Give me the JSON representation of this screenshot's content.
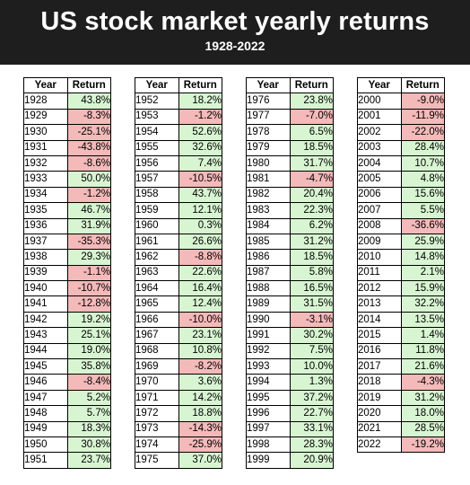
{
  "header": {
    "title": "US stock market yearly returns",
    "subtitle": "1928-2022"
  },
  "colors": {
    "header_bg": "#1e1e1e",
    "positive": "#d8f5d2",
    "negative": "#f4b9b9"
  },
  "chart_data": {
    "type": "table",
    "title": "US stock market yearly returns",
    "subtitle": "1928-2022",
    "columns": [
      "Year",
      "Return"
    ],
    "tables": [
      [
        [
          "1928",
          "43.8%"
        ],
        [
          "1929",
          "-8.3%"
        ],
        [
          "1930",
          "-25.1%"
        ],
        [
          "1931",
          "-43.8%"
        ],
        [
          "1932",
          "-8.6%"
        ],
        [
          "1933",
          "50.0%"
        ],
        [
          "1934",
          "-1.2%"
        ],
        [
          "1935",
          "46.7%"
        ],
        [
          "1936",
          "31.9%"
        ],
        [
          "1937",
          "-35.3%"
        ],
        [
          "1938",
          "29.3%"
        ],
        [
          "1939",
          "-1.1%"
        ],
        [
          "1940",
          "-10.7%"
        ],
        [
          "1941",
          "-12.8%"
        ],
        [
          "1942",
          "19.2%"
        ],
        [
          "1943",
          "25.1%"
        ],
        [
          "1944",
          "19.0%"
        ],
        [
          "1945",
          "35.8%"
        ],
        [
          "1946",
          "-8.4%"
        ],
        [
          "1947",
          "5.2%"
        ],
        [
          "1948",
          "5.7%"
        ],
        [
          "1949",
          "18.3%"
        ],
        [
          "1950",
          "30.8%"
        ],
        [
          "1951",
          "23.7%"
        ]
      ],
      [
        [
          "1952",
          "18.2%"
        ],
        [
          "1953",
          "-1.2%"
        ],
        [
          "1954",
          "52.6%"
        ],
        [
          "1955",
          "32.6%"
        ],
        [
          "1956",
          "7.4%"
        ],
        [
          "1957",
          "-10.5%"
        ],
        [
          "1958",
          "43.7%"
        ],
        [
          "1959",
          "12.1%"
        ],
        [
          "1960",
          "0.3%"
        ],
        [
          "1961",
          "26.6%"
        ],
        [
          "1962",
          "-8.8%"
        ],
        [
          "1963",
          "22.6%"
        ],
        [
          "1964",
          "16.4%"
        ],
        [
          "1965",
          "12.4%"
        ],
        [
          "1966",
          "-10.0%"
        ],
        [
          "1967",
          "23.1%"
        ],
        [
          "1968",
          "10.8%"
        ],
        [
          "1969",
          "-8.2%"
        ],
        [
          "1970",
          "3.6%"
        ],
        [
          "1971",
          "14.2%"
        ],
        [
          "1972",
          "18.8%"
        ],
        [
          "1973",
          "-14.3%"
        ],
        [
          "1974",
          "-25.9%"
        ],
        [
          "1975",
          "37.0%"
        ]
      ],
      [
        [
          "1976",
          "23.8%"
        ],
        [
          "1977",
          "-7.0%"
        ],
        [
          "1978",
          "6.5%"
        ],
        [
          "1979",
          "18.5%"
        ],
        [
          "1980",
          "31.7%"
        ],
        [
          "1981",
          "-4.7%"
        ],
        [
          "1982",
          "20.4%"
        ],
        [
          "1983",
          "22.3%"
        ],
        [
          "1984",
          "6.2%"
        ],
        [
          "1985",
          "31.2%"
        ],
        [
          "1986",
          "18.5%"
        ],
        [
          "1987",
          "5.8%"
        ],
        [
          "1988",
          "16.5%"
        ],
        [
          "1989",
          "31.5%"
        ],
        [
          "1990",
          "-3.1%"
        ],
        [
          "1991",
          "30.2%"
        ],
        [
          "1992",
          "7.5%"
        ],
        [
          "1993",
          "10.0%"
        ],
        [
          "1994",
          "1.3%"
        ],
        [
          "1995",
          "37.2%"
        ],
        [
          "1996",
          "22.7%"
        ],
        [
          "1997",
          "33.1%"
        ],
        [
          "1998",
          "28.3%"
        ],
        [
          "1999",
          "20.9%"
        ]
      ],
      [
        [
          "2000",
          "-9.0%"
        ],
        [
          "2001",
          "-11.9%"
        ],
        [
          "2002",
          "-22.0%"
        ],
        [
          "2003",
          "28.4%"
        ],
        [
          "2004",
          "10.7%"
        ],
        [
          "2005",
          "4.8%"
        ],
        [
          "2006",
          "15.6%"
        ],
        [
          "2007",
          "5.5%"
        ],
        [
          "2008",
          "-36.6%"
        ],
        [
          "2009",
          "25.9%"
        ],
        [
          "2010",
          "14.8%"
        ],
        [
          "2011",
          "2.1%"
        ],
        [
          "2012",
          "15.9%"
        ],
        [
          "2013",
          "32.2%"
        ],
        [
          "2014",
          "13.5%"
        ],
        [
          "2015",
          "1.4%"
        ],
        [
          "2016",
          "11.8%"
        ],
        [
          "2017",
          "21.6%"
        ],
        [
          "2018",
          "-4.3%"
        ],
        [
          "2019",
          "31.2%"
        ],
        [
          "2020",
          "18.0%"
        ],
        [
          "2021",
          "28.5%"
        ],
        [
          "2022",
          "-19.2%"
        ]
      ]
    ]
  }
}
